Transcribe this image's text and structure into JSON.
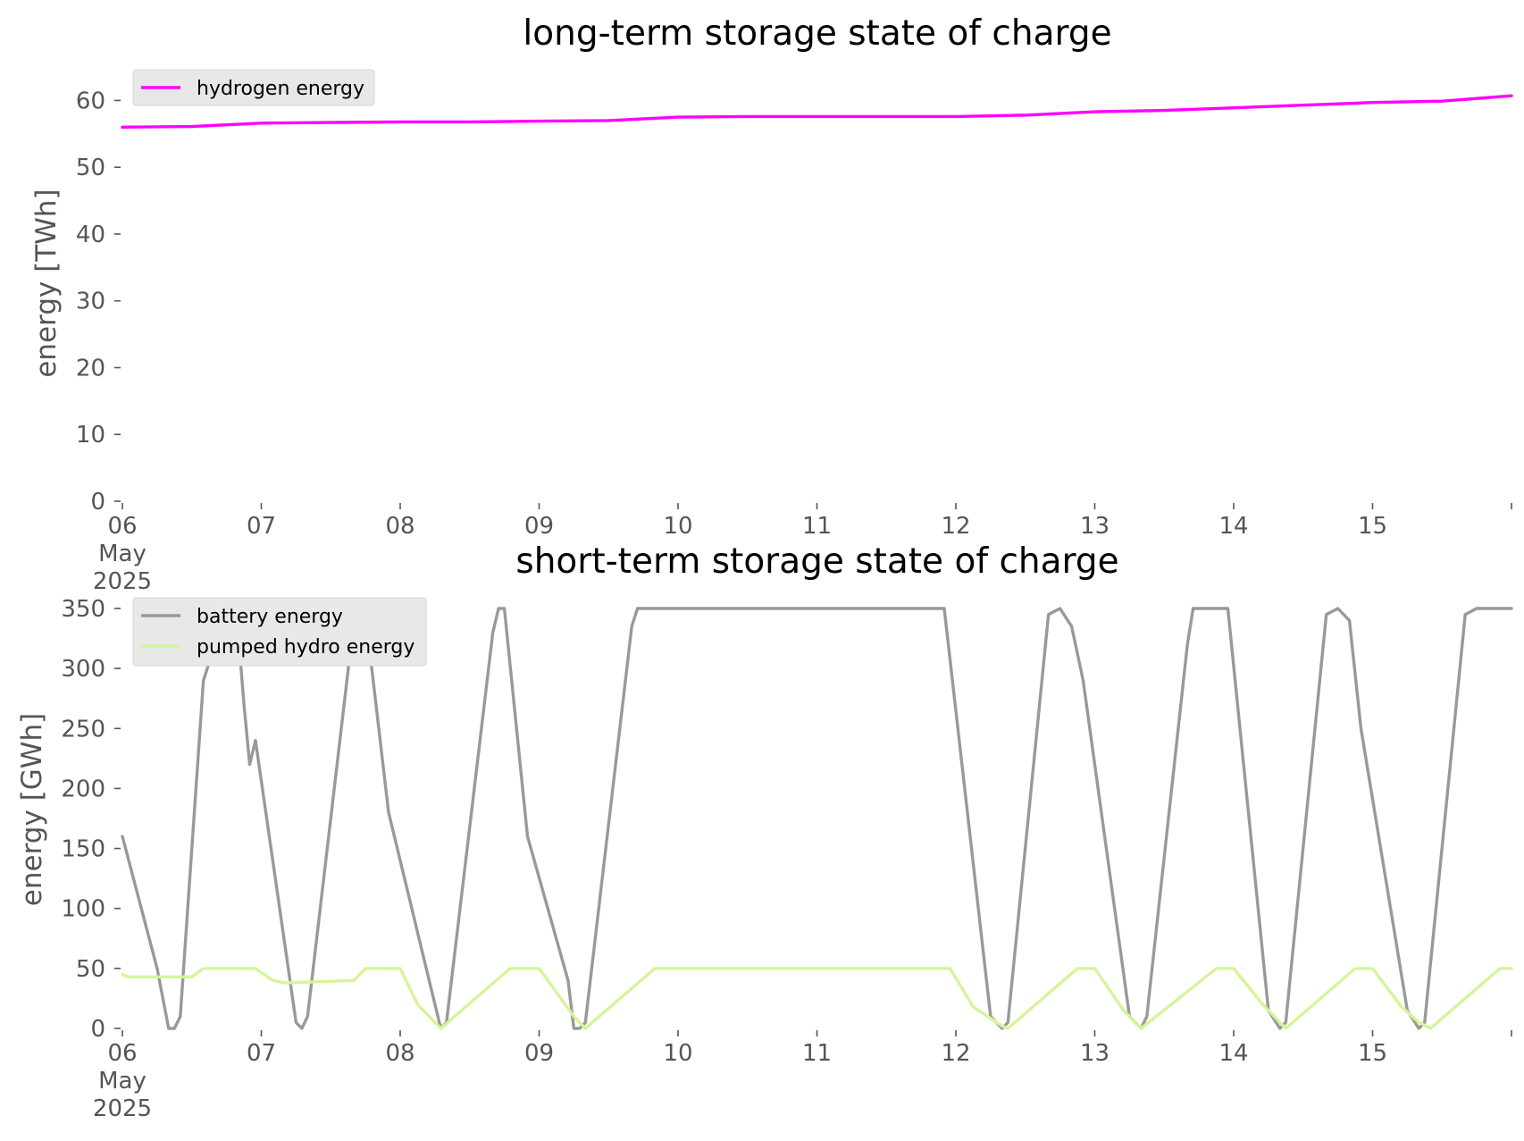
{
  "chart_data": [
    {
      "type": "line",
      "title": "long-term storage state of charge",
      "xlabel": "",
      "ylabel": "energy [TWh]",
      "ylim": [
        0,
        63
      ],
      "xlim": [
        "2025-05-06",
        "2025-05-16"
      ],
      "yticks": [
        0,
        10,
        20,
        30,
        40,
        50,
        60
      ],
      "xtick_labels": [
        "06",
        "07",
        "08",
        "09",
        "10",
        "11",
        "12",
        "13",
        "14",
        "15"
      ],
      "xtick_first_sublabels": [
        "May",
        "2025"
      ],
      "grid": false,
      "legend": "top-left",
      "series": [
        {
          "name": "hydrogen energy",
          "color": "#ff00ff",
          "x": [
            "2025-05-06T00:00",
            "2025-05-06T12:00",
            "2025-05-07T00:00",
            "2025-05-07T12:00",
            "2025-05-08T00:00",
            "2025-05-08T12:00",
            "2025-05-09T00:00",
            "2025-05-09T12:00",
            "2025-05-10T00:00",
            "2025-05-10T12:00",
            "2025-05-11T00:00",
            "2025-05-11T12:00",
            "2025-05-12T00:00",
            "2025-05-12T12:00",
            "2025-05-13T00:00",
            "2025-05-13T12:00",
            "2025-05-14T00:00",
            "2025-05-14T12:00",
            "2025-05-15T00:00",
            "2025-05-15T12:00",
            "2025-05-16T00:00"
          ],
          "y": [
            56.0,
            56.1,
            56.6,
            56.7,
            56.8,
            56.8,
            56.9,
            57.0,
            57.5,
            57.6,
            57.6,
            57.6,
            57.6,
            57.8,
            58.3,
            58.5,
            58.9,
            59.3,
            59.7,
            59.9,
            60.7
          ]
        }
      ]
    },
    {
      "type": "line",
      "title": "short-term storage state of charge",
      "xlabel": "",
      "ylabel": "energy [GWh]",
      "ylim": [
        0,
        350
      ],
      "xlim": [
        "2025-05-06",
        "2025-05-16"
      ],
      "yticks": [
        0,
        50,
        100,
        150,
        200,
        250,
        300,
        350
      ],
      "xtick_labels": [
        "06",
        "07",
        "08",
        "09",
        "10",
        "11",
        "12",
        "13",
        "14",
        "15"
      ],
      "xtick_first_sublabels": [
        "May",
        "2025"
      ],
      "grid": false,
      "legend": "top-left",
      "series": [
        {
          "name": "battery energy",
          "color": "#999999",
          "x": [
            "2025-05-06T00:00",
            "2025-05-06T06:00",
            "2025-05-06T08:00",
            "2025-05-06T09:00",
            "2025-05-06T10:00",
            "2025-05-06T14:00",
            "2025-05-06T18:00",
            "2025-05-06T20:00",
            "2025-05-06T21:00",
            "2025-05-06T22:00",
            "2025-05-06T23:00",
            "2025-05-07T06:00",
            "2025-05-07T07:00",
            "2025-05-07T08:00",
            "2025-05-07T16:00",
            "2025-05-07T17:00",
            "2025-05-07T18:00",
            "2025-05-07T22:00",
            "2025-05-08T06:00",
            "2025-05-08T07:00",
            "2025-05-08T08:00",
            "2025-05-08T16:00",
            "2025-05-08T17:00",
            "2025-05-08T18:00",
            "2025-05-08T22:00",
            "2025-05-09T05:00",
            "2025-05-09T06:00",
            "2025-05-09T07:00",
            "2025-05-09T08:00",
            "2025-05-09T16:00",
            "2025-05-09T17:00",
            "2025-05-11T22:00",
            "2025-05-12T06:00",
            "2025-05-12T08:00",
            "2025-05-12T09:00",
            "2025-05-12T16:00",
            "2025-05-12T18:00",
            "2025-05-12T20:00",
            "2025-05-12T22:00",
            "2025-05-13T06:00",
            "2025-05-13T08:00",
            "2025-05-13T09:00",
            "2025-05-13T16:00",
            "2025-05-13T17:00",
            "2025-05-13T23:00",
            "2025-05-14T06:00",
            "2025-05-14T08:00",
            "2025-05-14T09:00",
            "2025-05-14T16:00",
            "2025-05-14T18:00",
            "2025-05-14T20:00",
            "2025-05-14T22:00",
            "2025-05-15T06:00",
            "2025-05-15T08:00",
            "2025-05-15T09:00",
            "2025-05-15T16:00",
            "2025-05-15T18:00",
            "2025-05-16T00:00"
          ],
          "y": [
            160,
            50,
            0,
            0,
            10,
            290,
            350,
            330,
            270,
            220,
            240,
            5,
            0,
            10,
            340,
            350,
            345,
            180,
            20,
            0,
            5,
            330,
            350,
            350,
            160,
            40,
            0,
            0,
            5,
            335,
            350,
            350,
            10,
            0,
            5,
            345,
            350,
            335,
            290,
            10,
            0,
            10,
            320,
            350,
            350,
            15,
            0,
            5,
            345,
            350,
            340,
            250,
            15,
            0,
            5,
            345,
            350,
            350
          ]
        },
        {
          "name": "pumped hydro energy",
          "color": "#d4f59a",
          "x": [
            "2025-05-06T00:00",
            "2025-05-06T01:00",
            "2025-05-06T12:00",
            "2025-05-06T14:00",
            "2025-05-06T23:00",
            "2025-05-07T02:00",
            "2025-05-07T04:00",
            "2025-05-07T16:00",
            "2025-05-07T18:00",
            "2025-05-08T00:00",
            "2025-05-08T03:00",
            "2025-05-08T07:00",
            "2025-05-08T19:00",
            "2025-05-09T00:00",
            "2025-05-09T06:00",
            "2025-05-09T08:00",
            "2025-05-09T20:00",
            "2025-05-11T23:00",
            "2025-05-12T03:00",
            "2025-05-12T08:00",
            "2025-05-12T09:00",
            "2025-05-12T21:00",
            "2025-05-13T00:00",
            "2025-05-13T05:00",
            "2025-05-13T08:00",
            "2025-05-13T21:00",
            "2025-05-14T00:00",
            "2025-05-14T05:00",
            "2025-05-14T09:00",
            "2025-05-14T21:00",
            "2025-05-15T00:00",
            "2025-05-15T05:00",
            "2025-05-15T08:00",
            "2025-05-15T10:00",
            "2025-05-15T22:00",
            "2025-05-16T00:00"
          ],
          "y": [
            45,
            43,
            43,
            50,
            50,
            40,
            38,
            40,
            50,
            50,
            20,
            0,
            50,
            50,
            10,
            0,
            50,
            50,
            18,
            2,
            0,
            50,
            50,
            15,
            0,
            50,
            50,
            20,
            0,
            50,
            50,
            18,
            5,
            0,
            50,
            50
          ]
        }
      ]
    }
  ]
}
